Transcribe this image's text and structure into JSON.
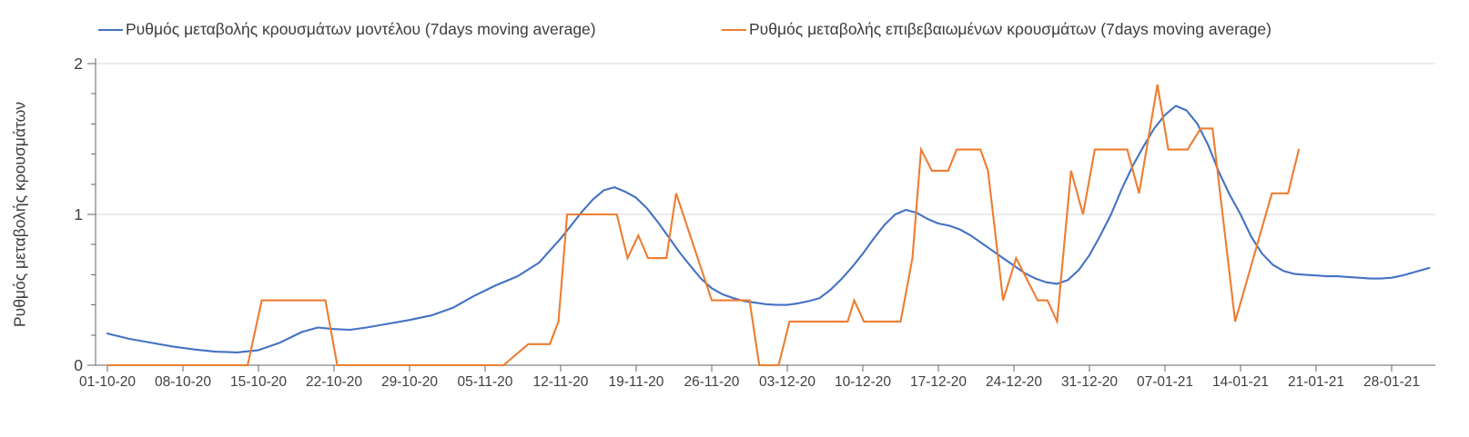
{
  "chart_data": {
    "type": "line",
    "title": "",
    "xlabel": "",
    "ylabel": "Ρυθμός μεταβολής κρουσμάτων",
    "ylim": [
      0,
      2
    ],
    "y_major_ticks": [
      0,
      1,
      2
    ],
    "y_minor_tick_step": 0.2,
    "grid": "horizontal major gridlines only",
    "legend_position": "top",
    "x_unit": "days since 01-10-2020, weekly tick labels",
    "x_ticks": [
      {
        "day": 0,
        "label": "01-10-20"
      },
      {
        "day": 7,
        "label": "08-10-20"
      },
      {
        "day": 14,
        "label": "15-10-20"
      },
      {
        "day": 21,
        "label": "22-10-20"
      },
      {
        "day": 28,
        "label": "29-10-20"
      },
      {
        "day": 35,
        "label": "05-11-20"
      },
      {
        "day": 42,
        "label": "12-11-20"
      },
      {
        "day": 49,
        "label": "19-11-20"
      },
      {
        "day": 56,
        "label": "26-11-20"
      },
      {
        "day": 63,
        "label": "03-12-20"
      },
      {
        "day": 70,
        "label": "10-12-20"
      },
      {
        "day": 77,
        "label": "17-12-20"
      },
      {
        "day": 84,
        "label": "24-12-20"
      },
      {
        "day": 91,
        "label": "31-12-20"
      },
      {
        "day": 98,
        "label": "07-01-21"
      },
      {
        "day": 105,
        "label": "14-01-21"
      },
      {
        "day": 112,
        "label": "21-01-21"
      },
      {
        "day": 119,
        "label": "28-01-21"
      }
    ],
    "series": [
      {
        "name": "Ρυθμός μεταβολής κρουσμάτων μοντέλου (7days moving average)",
        "color": "#4472C4",
        "style": "smooth",
        "points": [
          [
            0,
            0.21
          ],
          [
            2,
            0.175
          ],
          [
            4,
            0.15
          ],
          [
            6,
            0.125
          ],
          [
            8,
            0.105
          ],
          [
            10,
            0.09
          ],
          [
            12,
            0.085
          ],
          [
            14,
            0.1
          ],
          [
            16,
            0.15
          ],
          [
            18,
            0.22
          ],
          [
            19.5,
            0.25
          ],
          [
            21,
            0.24
          ],
          [
            22.5,
            0.235
          ],
          [
            24,
            0.25
          ],
          [
            26,
            0.275
          ],
          [
            28,
            0.3
          ],
          [
            30,
            0.33
          ],
          [
            32,
            0.38
          ],
          [
            34,
            0.46
          ],
          [
            36,
            0.53
          ],
          [
            38,
            0.59
          ],
          [
            40,
            0.68
          ],
          [
            41,
            0.76
          ],
          [
            42,
            0.84
          ],
          [
            43,
            0.93
          ],
          [
            44,
            1.02
          ],
          [
            45,
            1.1
          ],
          [
            46,
            1.16
          ],
          [
            47,
            1.18
          ],
          [
            48,
            1.15
          ],
          [
            49,
            1.11
          ],
          [
            50,
            1.04
          ],
          [
            51,
            0.95
          ],
          [
            52,
            0.85
          ],
          [
            53,
            0.75
          ],
          [
            54,
            0.66
          ],
          [
            55,
            0.575
          ],
          [
            56,
            0.51
          ],
          [
            57,
            0.47
          ],
          [
            58,
            0.445
          ],
          [
            59,
            0.425
          ],
          [
            60,
            0.415
          ],
          [
            61,
            0.405
          ],
          [
            62,
            0.4
          ],
          [
            63,
            0.4
          ],
          [
            64,
            0.41
          ],
          [
            65,
            0.425
          ],
          [
            66,
            0.445
          ],
          [
            67,
            0.5
          ],
          [
            68,
            0.57
          ],
          [
            69,
            0.65
          ],
          [
            70,
            0.74
          ],
          [
            71,
            0.84
          ],
          [
            72,
            0.93
          ],
          [
            73,
            1.0
          ],
          [
            74,
            1.03
          ],
          [
            75,
            1.01
          ],
          [
            76,
            0.97
          ],
          [
            77,
            0.94
          ],
          [
            78,
            0.925
          ],
          [
            79,
            0.9
          ],
          [
            80,
            0.86
          ],
          [
            81,
            0.81
          ],
          [
            82,
            0.76
          ],
          [
            83,
            0.71
          ],
          [
            84,
            0.66
          ],
          [
            85,
            0.61
          ],
          [
            86,
            0.575
          ],
          [
            87,
            0.55
          ],
          [
            88,
            0.54
          ],
          [
            89,
            0.565
          ],
          [
            90,
            0.63
          ],
          [
            91,
            0.73
          ],
          [
            92,
            0.86
          ],
          [
            93,
            1.0
          ],
          [
            94,
            1.17
          ],
          [
            95,
            1.32
          ],
          [
            96,
            1.45
          ],
          [
            97,
            1.57
          ],
          [
            98,
            1.66
          ],
          [
            99,
            1.72
          ],
          [
            100,
            1.69
          ],
          [
            101,
            1.6
          ],
          [
            102,
            1.46
          ],
          [
            103,
            1.28
          ],
          [
            104,
            1.13
          ],
          [
            105,
            1.0
          ],
          [
            106,
            0.85
          ],
          [
            107,
            0.74
          ],
          [
            108,
            0.665
          ],
          [
            109,
            0.625
          ],
          [
            110,
            0.605
          ],
          [
            111,
            0.6
          ],
          [
            112,
            0.595
          ],
          [
            113,
            0.59
          ],
          [
            114,
            0.59
          ],
          [
            115,
            0.585
          ],
          [
            116,
            0.58
          ],
          [
            117,
            0.575
          ],
          [
            118,
            0.575
          ],
          [
            119,
            0.58
          ],
          [
            120,
            0.595
          ],
          [
            121,
            0.615
          ],
          [
            122.5,
            0.645
          ]
        ]
      },
      {
        "name": "Ρυθμός μεταβολής επιβεβαιωμένων κρουσμάτων (7days moving average)",
        "color": "#ED7D31",
        "style": "straight",
        "points": [
          [
            0,
            0
          ],
          [
            13,
            0
          ],
          [
            14.3,
            0.43
          ],
          [
            20.2,
            0.43
          ],
          [
            21.3,
            0
          ],
          [
            36.7,
            0
          ],
          [
            39,
            0.14
          ],
          [
            41,
            0.14
          ],
          [
            41.8,
            0.29
          ],
          [
            42.6,
            1.0
          ],
          [
            47.2,
            1.0
          ],
          [
            48.2,
            0.71
          ],
          [
            49.2,
            0.86
          ],
          [
            50.1,
            0.71
          ],
          [
            51.8,
            0.71
          ],
          [
            52.7,
            1.14
          ],
          [
            56,
            0.43
          ],
          [
            59.5,
            0.43
          ],
          [
            60.4,
            0
          ],
          [
            62.2,
            0
          ],
          [
            63.2,
            0.29
          ],
          [
            68.6,
            0.29
          ],
          [
            69.2,
            0.43
          ],
          [
            70.1,
            0.29
          ],
          [
            73.5,
            0.29
          ],
          [
            74.6,
            0.71
          ],
          [
            75.4,
            1.43
          ],
          [
            76.4,
            1.29
          ],
          [
            77.9,
            1.29
          ],
          [
            78.7,
            1.43
          ],
          [
            80.9,
            1.43
          ],
          [
            81.6,
            1.29
          ],
          [
            83,
            0.43
          ],
          [
            84.2,
            0.71
          ],
          [
            86.2,
            0.43
          ],
          [
            87.1,
            0.43
          ],
          [
            88,
            0.29
          ],
          [
            89.3,
            1.29
          ],
          [
            90.4,
            1.0
          ],
          [
            91.5,
            1.43
          ],
          [
            94.5,
            1.43
          ],
          [
            95.6,
            1.14
          ],
          [
            97.3,
            1.86
          ],
          [
            98.3,
            1.43
          ],
          [
            100.1,
            1.43
          ],
          [
            101.3,
            1.57
          ],
          [
            102.4,
            1.57
          ],
          [
            104.5,
            0.29
          ],
          [
            107.9,
            1.14
          ],
          [
            109.4,
            1.14
          ],
          [
            110.4,
            1.43
          ]
        ]
      }
    ],
    "colors": {
      "model_line": "#4472C4",
      "confirmed_line": "#ED7D31",
      "gridline": "#D9D9D9",
      "axis_line": "#666666",
      "tick_label": "#404040",
      "legend_text": "#3d3d3d"
    }
  }
}
